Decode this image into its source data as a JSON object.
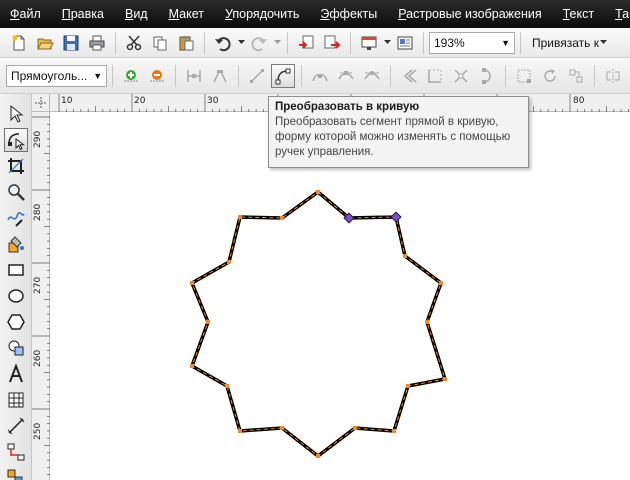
{
  "menubar": {
    "items": [
      "Файл",
      "Правка",
      "Вид",
      "Макет",
      "Упорядочить",
      "Эффекты",
      "Растровые изображения",
      "Текст",
      "Табл"
    ]
  },
  "toolbar": {
    "zoom_value": "193%",
    "snap_label": "Привязать к"
  },
  "property_bar": {
    "object_type": "Прямоуголь..."
  },
  "rulers": {
    "top_labels": [
      "10",
      "20",
      "30",
      "80"
    ],
    "left_labels": [
      "290",
      "280",
      "270",
      "260",
      "250"
    ]
  },
  "tooltip": {
    "title": "Преобразовать в кривую",
    "lines": [
      "Преобразовать сегмент прямой в кривую,",
      "форму которой можно изменять с помощью",
      "ручек управления."
    ]
  },
  "colors": {
    "menubar_bg": "#111111",
    "star_outline": "#000000",
    "node_orange": "#f08a24",
    "node_selected": "#7b4bd6"
  }
}
